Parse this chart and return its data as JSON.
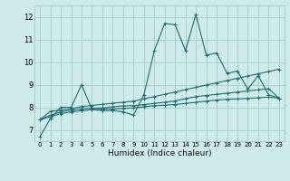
{
  "xlabel": "Humidex (Indice chaleur)",
  "ylabel": "",
  "bg_color": "#ceeaea",
  "grid_color": "#aacfcf",
  "line_color": "#1e6e6e",
  "xlim": [
    -0.5,
    23.5
  ],
  "ylim": [
    6.5,
    12.5
  ],
  "xticks": [
    0,
    1,
    2,
    3,
    4,
    5,
    6,
    7,
    8,
    9,
    10,
    11,
    12,
    13,
    14,
    15,
    16,
    17,
    18,
    19,
    20,
    21,
    22,
    23
  ],
  "yticks": [
    7,
    8,
    9,
    10,
    11,
    12
  ],
  "lines": [
    [
      6.7,
      7.5,
      8.0,
      8.0,
      9.0,
      7.9,
      7.85,
      7.85,
      7.8,
      7.65,
      8.55,
      10.5,
      11.7,
      11.65,
      10.5,
      12.1,
      10.3,
      10.4,
      9.5,
      9.6,
      8.8,
      9.4,
      8.55,
      8.4
    ],
    [
      7.45,
      7.82,
      7.88,
      7.93,
      8.03,
      8.08,
      8.13,
      8.18,
      8.22,
      8.27,
      8.37,
      8.47,
      8.57,
      8.67,
      8.78,
      8.88,
      8.98,
      9.08,
      9.18,
      9.28,
      9.38,
      9.48,
      9.58,
      9.68
    ],
    [
      7.45,
      7.65,
      7.8,
      7.87,
      7.92,
      7.96,
      7.97,
      8.02,
      8.06,
      8.07,
      8.12,
      8.17,
      8.22,
      8.28,
      8.38,
      8.47,
      8.52,
      8.57,
      8.62,
      8.67,
      8.72,
      8.77,
      8.82,
      8.4
    ],
    [
      7.45,
      7.58,
      7.72,
      7.79,
      7.85,
      7.89,
      7.92,
      7.92,
      7.95,
      7.97,
      8.02,
      8.07,
      8.09,
      8.12,
      8.17,
      8.22,
      8.27,
      8.32,
      8.35,
      8.37,
      8.39,
      8.42,
      8.45,
      8.4
    ]
  ]
}
